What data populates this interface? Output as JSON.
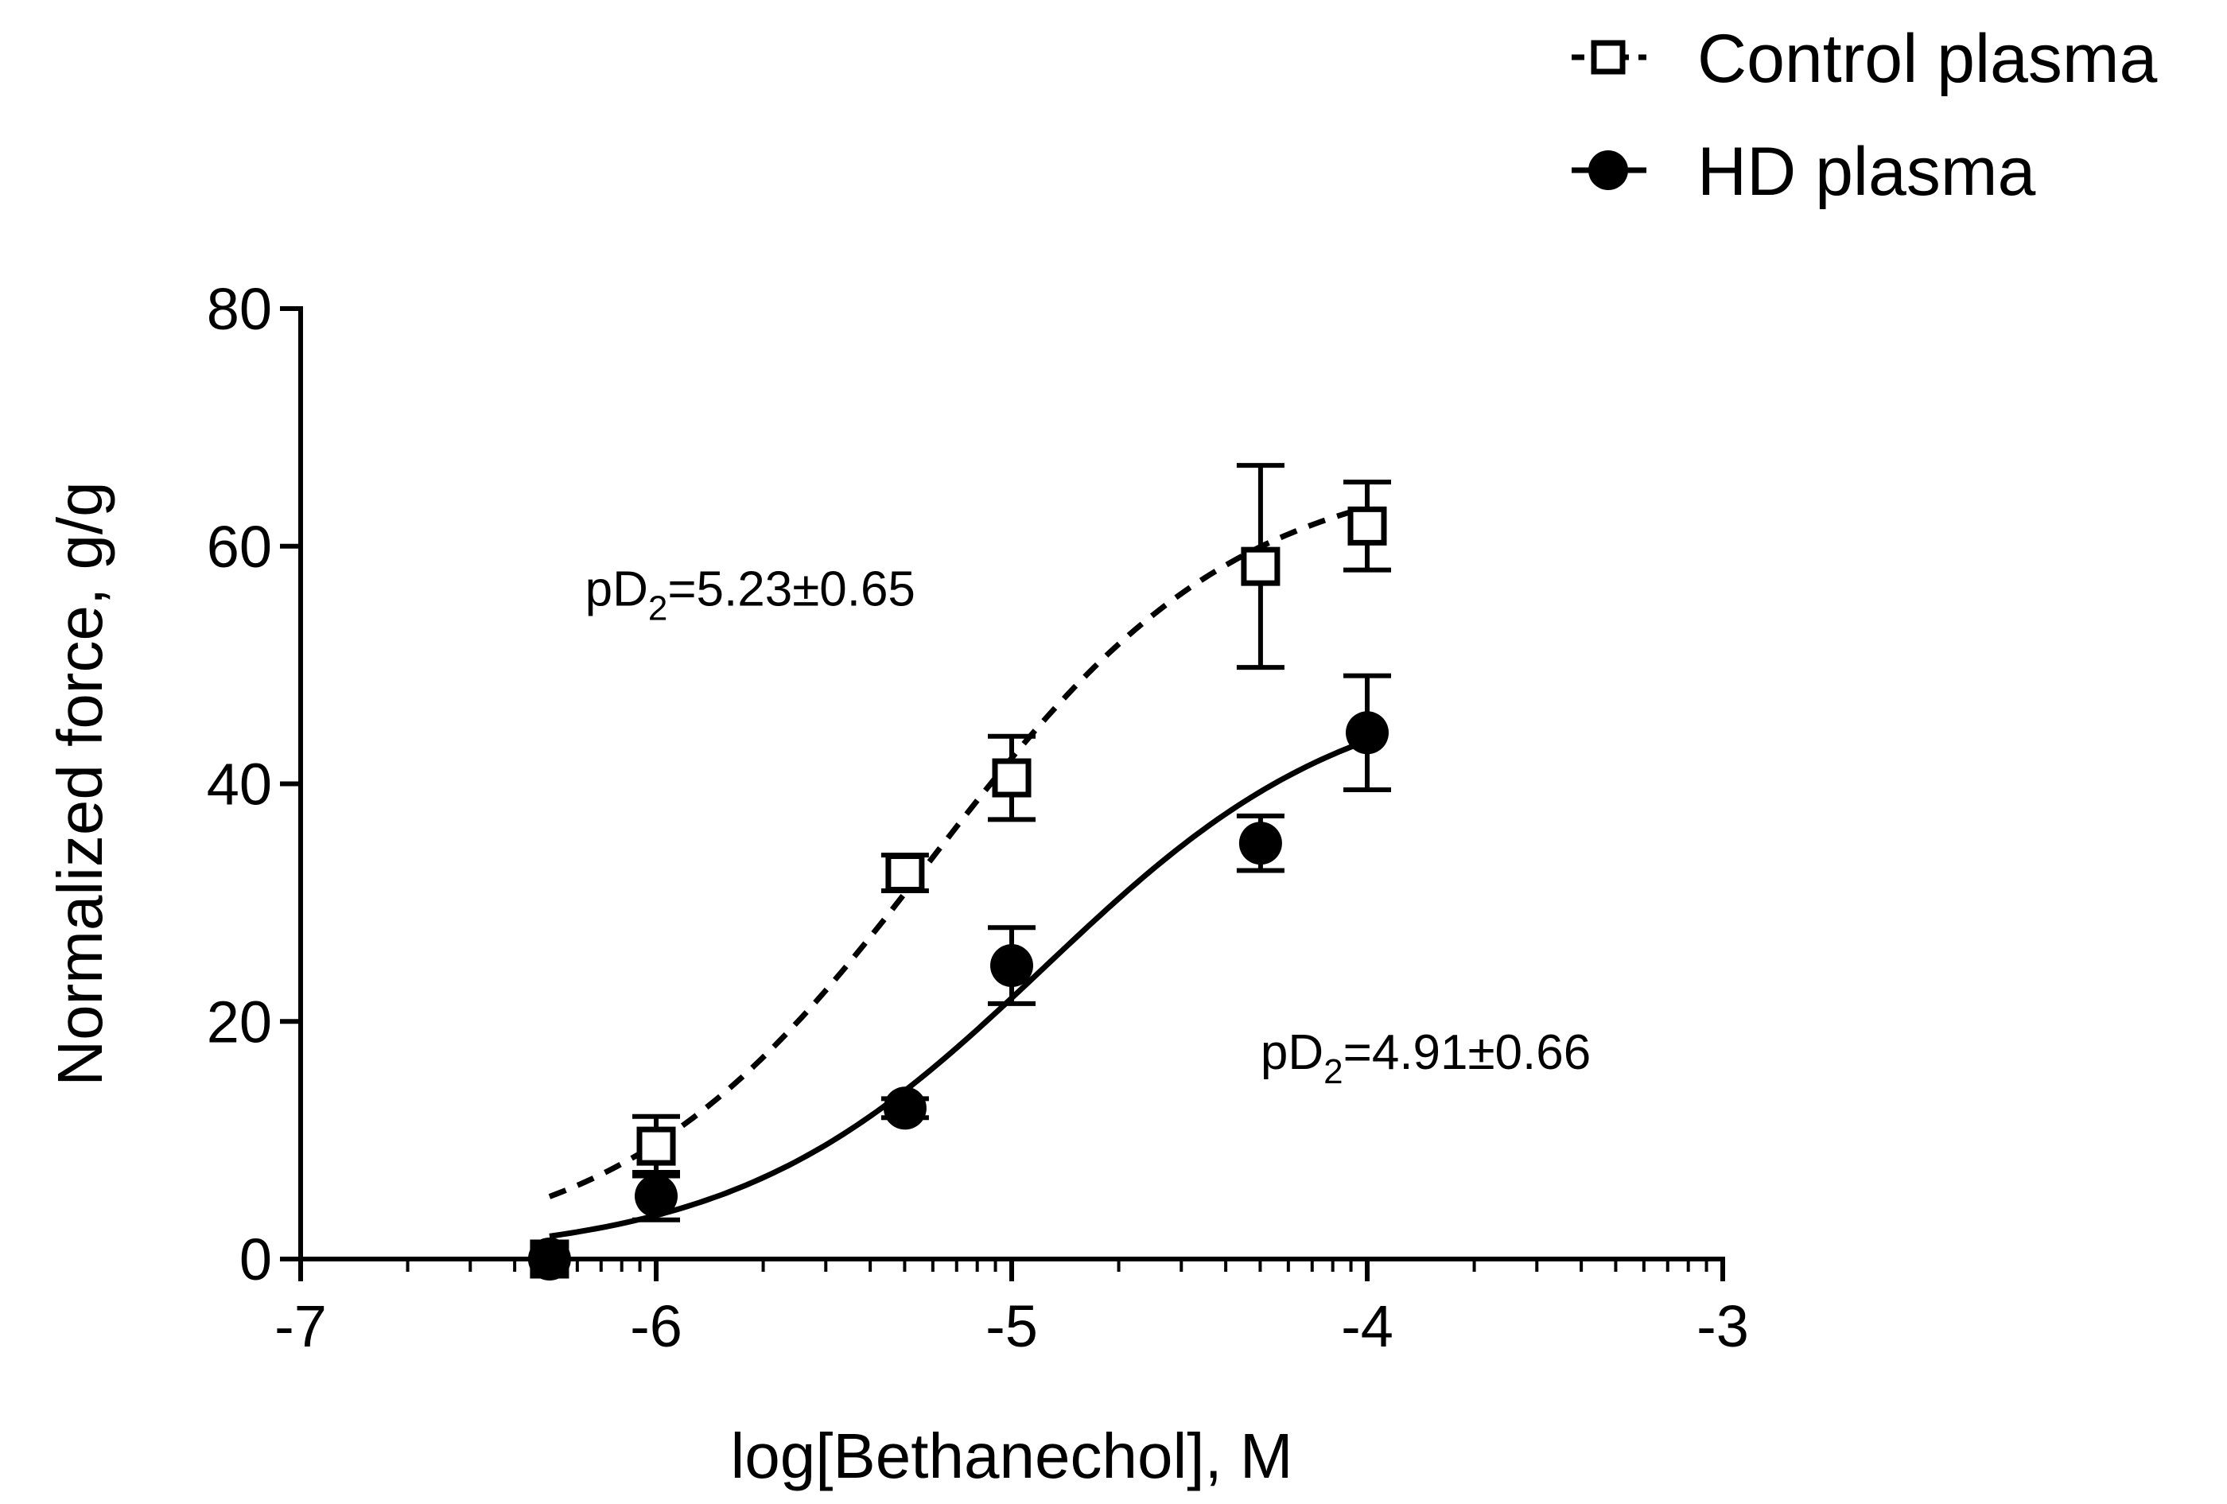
{
  "chart_data": {
    "type": "scatter",
    "xlabel": "log[Bethanechol], M",
    "ylabel": "Normalized force, g/g",
    "xlim": [
      -7,
      -3
    ],
    "ylim": [
      0,
      80
    ],
    "x_ticks": [
      "-7",
      "-6",
      "-5",
      "-4",
      "-3"
    ],
    "y_ticks": [
      "0",
      "20",
      "40",
      "60",
      "80"
    ],
    "x_scale": "log",
    "legend_position": "top-right",
    "annotations": [
      {
        "prefix": "pD",
        "subscript": "2",
        "suffix": "=5.23±0.65",
        "x": -6.2,
        "y": 55
      },
      {
        "prefix": "pD",
        "subscript": "2",
        "suffix": "=4.91±0.66",
        "x": -4.3,
        "y": 16
      }
    ],
    "series": [
      {
        "name": "Control plasma",
        "marker": "open-square",
        "line": "dashed",
        "fit": {
          "bottom": 0,
          "top": 67,
          "logEC50": -5.23,
          "hill": 1,
          "x_start": -6.3,
          "x_end": -4.0
        },
        "points": [
          {
            "x": -6.3,
            "y": 0,
            "err": 0
          },
          {
            "x": -6.0,
            "y": 9.5,
            "err": 2.5
          },
          {
            "x": -5.3,
            "y": 32.5,
            "err": 1.5
          },
          {
            "x": -5.0,
            "y": 40.5,
            "err": 3.5
          },
          {
            "x": -4.3,
            "y": 58.3,
            "err": 8.5
          },
          {
            "x": -4.0,
            "y": 61.7,
            "err": 3.7
          }
        ]
      },
      {
        "name": "HD plasma",
        "marker": "filled-circle",
        "line": "solid",
        "fit": {
          "bottom": 0,
          "top": 49,
          "logEC50": -4.91,
          "hill": 1,
          "x_start": -6.3,
          "x_end": -4.0
        },
        "points": [
          {
            "x": -6.3,
            "y": 0,
            "err": 0
          },
          {
            "x": -6.0,
            "y": 5.3,
            "err": 2.0
          },
          {
            "x": -5.3,
            "y": 12.7,
            "err": 0.8
          },
          {
            "x": -5.0,
            "y": 24.7,
            "err": 3.2
          },
          {
            "x": -4.3,
            "y": 35.0,
            "err": 2.3
          },
          {
            "x": -4.0,
            "y": 44.3,
            "err": 4.8
          }
        ]
      }
    ]
  }
}
